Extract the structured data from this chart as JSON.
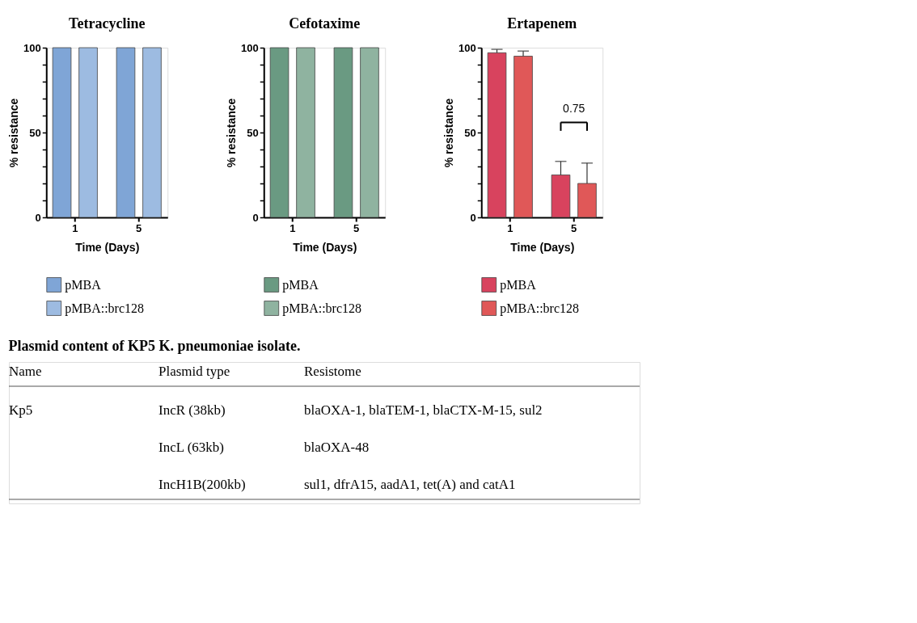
{
  "chart_data": [
    {
      "type": "bar",
      "title": "Tetracycline",
      "xlabel": "Time (Days)",
      "ylabel": "% resistance",
      "categories": [
        "1",
        "5"
      ],
      "ylim": [
        0,
        100
      ],
      "yticks": [
        0,
        {
          "value": 10,
          "label": null
        },
        {
          "value": 20,
          "label": null
        },
        {
          "value": 30,
          "label": null
        },
        {
          "value": 40,
          "label": null
        },
        50,
        {
          "value": 60,
          "label": null
        },
        {
          "value": 70,
          "label": null
        },
        {
          "value": 80,
          "label": null
        },
        {
          "value": 90,
          "label": null
        },
        100
      ],
      "legend": "bottom",
      "grid": false,
      "series": [
        {
          "name": "pMBA",
          "color": "#7fa5d6",
          "values": [
            100,
            100
          ]
        },
        {
          "name": "pMBA::brc128",
          "color": "#9dbbe1",
          "values": [
            100,
            100
          ]
        }
      ]
    },
    {
      "type": "bar",
      "title": "Cefotaxime",
      "xlabel": "Time (Days)",
      "ylabel": "% resistance",
      "categories": [
        "1",
        "5"
      ],
      "ylim": [
        0,
        100
      ],
      "yticks": [
        0,
        {
          "value": 10,
          "label": null
        },
        {
          "value": 20,
          "label": null
        },
        {
          "value": 30,
          "label": null
        },
        {
          "value": 40,
          "label": null
        },
        50,
        {
          "value": 60,
          "label": null
        },
        {
          "value": 70,
          "label": null
        },
        {
          "value": 80,
          "label": null
        },
        {
          "value": 90,
          "label": null
        },
        100
      ],
      "legend": "bottom",
      "grid": false,
      "series": [
        {
          "name": "pMBA",
          "color": "#6a9a82",
          "values": [
            100,
            100
          ]
        },
        {
          "name": "pMBA::brc128",
          "color": "#8fb3a0",
          "values": [
            100,
            100
          ]
        }
      ]
    },
    {
      "type": "bar",
      "title": "Ertapenem",
      "xlabel": "Time (Days)",
      "ylabel": "% resistance",
      "categories": [
        "1",
        "5"
      ],
      "ylim": [
        0,
        100
      ],
      "yticks": [
        0,
        {
          "value": 10,
          "label": null
        },
        {
          "value": 20,
          "label": null
        },
        {
          "value": 30,
          "label": null
        },
        {
          "value": 40,
          "label": null
        },
        50,
        {
          "value": 60,
          "label": null
        },
        {
          "value": 70,
          "label": null
        },
        {
          "value": 80,
          "label": null
        },
        {
          "value": 90,
          "label": null
        },
        100
      ],
      "legend": "bottom",
      "grid": false,
      "annotations": [
        "0.75"
      ],
      "series": [
        {
          "name": "pMBA",
          "color": "#d8435e",
          "values": [
            97,
            25
          ],
          "errors": [
            [
              97,
              99
            ],
            [
              25,
              33
            ]
          ]
        },
        {
          "name": "pMBA::brc128",
          "color": "#e05858",
          "values": [
            95,
            20
          ],
          "errors": [
            [
              95,
              98
            ],
            [
              20,
              32
            ]
          ]
        }
      ]
    },
    {
      "type": "other",
      "title": "Plasmid content of KP5 K. pneumoniae isolate.",
      "annotations": [
        "Name",
        "Plasmid type",
        "Resistome",
        "Kp5",
        "IncR (38kb)",
        "blaOXA-1, blaTEM-1, blaCTX-M-15, sul2",
        "IncL (63kb)",
        "blaOXA-48",
        "IncH1B(200kb)",
        "sul1, dfrA15, aadA1, tet(A) and catA1"
      ]
    }
  ]
}
